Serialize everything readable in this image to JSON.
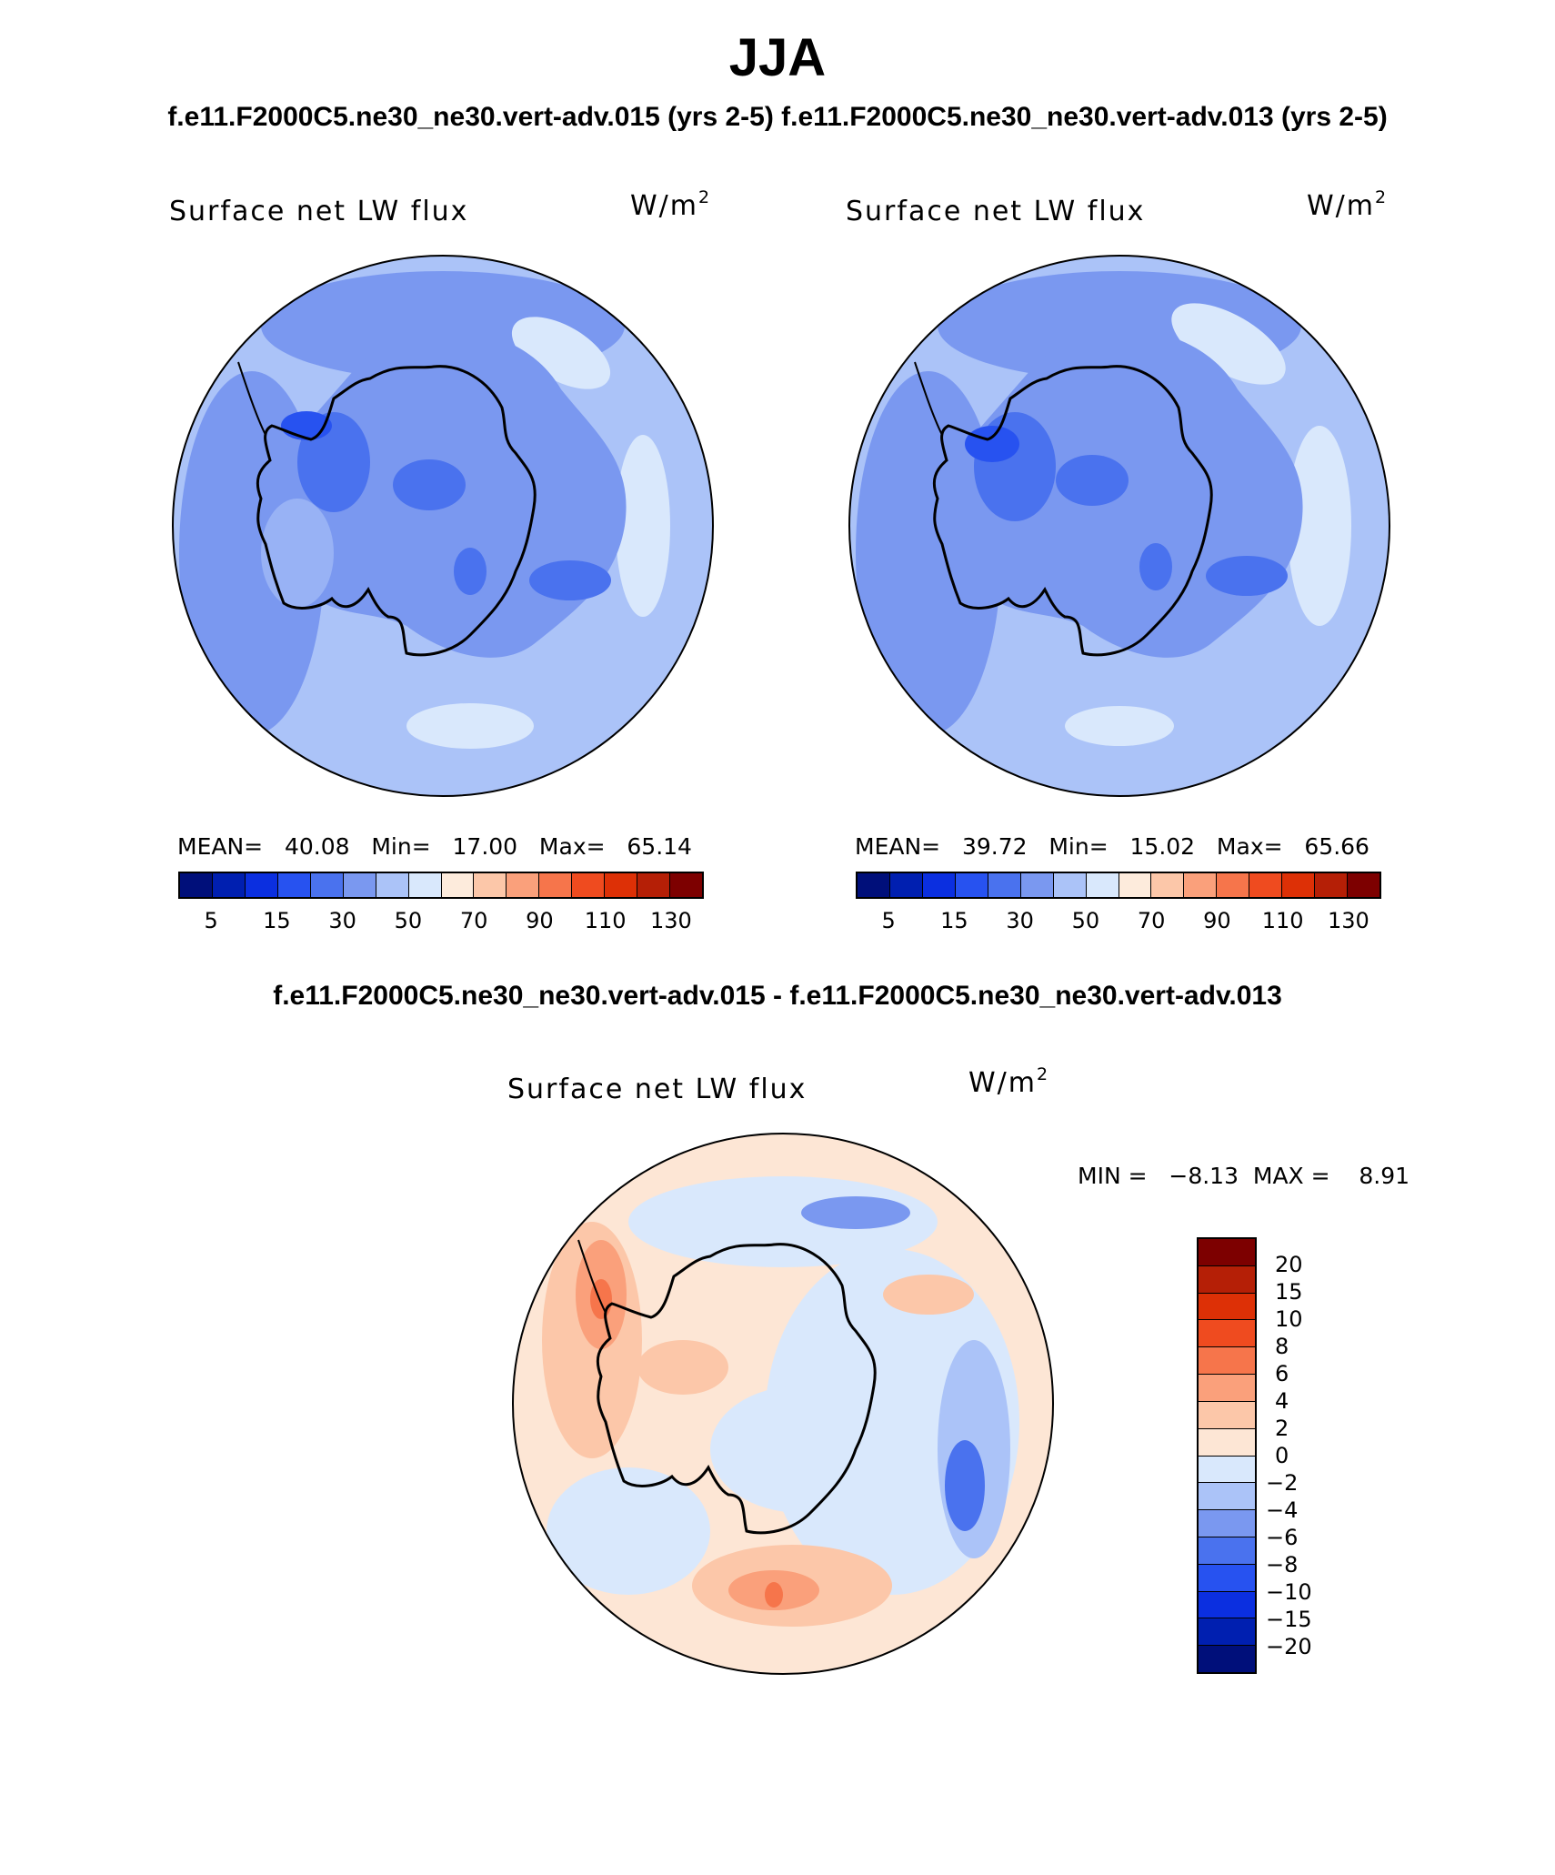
{
  "header": {
    "season": "JJA",
    "case_titles": "f.e11.F2000C5.ne30_ne30.vert-adv.015 (yrs 2-5)  f.e11.F2000C5.ne30_ne30.vert-adv.013 (yrs 2-5)",
    "diff_title": "f.e11.F2000C5.ne30_ne30.vert-adv.015 - f.e11.F2000C5.ne30_ne30.vert-adv.013"
  },
  "units": {
    "base": "W/m",
    "exp": "2"
  },
  "panels": [
    {
      "name": "Surface net LW flux",
      "stats": "MEAN=   40.08   Min=   17.00   Max=   65.14"
    },
    {
      "name": "Surface net LW flux",
      "stats": "MEAN=   39.72   Min=   15.02   Max=   65.66"
    }
  ],
  "diff_panel": {
    "name": "Surface net LW flux",
    "stats": "MIN =   −8.13  MAX =    8.91"
  },
  "abs_colorbar": {
    "colors": [
      "#000f7a",
      "#001fb0",
      "#0b2fe0",
      "#2752f0",
      "#4a72ee",
      "#7a98f0",
      "#abc3f8",
      "#d9e8fc",
      "#fdebdc",
      "#fcc7a9",
      "#faa07b",
      "#f6754b",
      "#ef4b1f",
      "#dd3006",
      "#b51f06",
      "#7d0000"
    ],
    "ticks": [
      "5",
      "15",
      "30",
      "50",
      "70",
      "90",
      "110",
      "130"
    ]
  },
  "diff_colorbar": {
    "colors": [
      "#7d0000",
      "#b51f06",
      "#dd3006",
      "#ef4b1f",
      "#f6754b",
      "#faa07b",
      "#fcc7a9",
      "#fde6d5",
      "#d9e8fc",
      "#abc3f8",
      "#7a98f0",
      "#4a72ee",
      "#2752f0",
      "#0b2fe0",
      "#001fb0",
      "#000f7a"
    ],
    "ticks": [
      "20",
      "15",
      "10",
      "8",
      "6",
      "4",
      "2",
      "0",
      "−2",
      "−4",
      "−6",
      "−8",
      "−10",
      "−15",
      "−20"
    ]
  }
}
